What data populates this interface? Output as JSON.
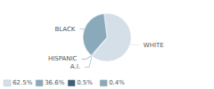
{
  "chart_data": {
    "type": "pie",
    "categories": [
      "WHITE",
      "A.I.",
      "HISPANIC",
      "BLACK"
    ],
    "values": [
      62.5,
      0.4,
      0.5,
      36.6
    ],
    "colors": [
      "#d4dfe8",
      "#8aaabb",
      "#6b8fa5",
      "#8aaabb"
    ],
    "legend": "lower left",
    "legend_items": [
      {
        "label": "62.5%",
        "color": "#d4dfe8"
      },
      {
        "label": "36.6%",
        "color": "#8aaabb"
      },
      {
        "label": "0.5%",
        "color": "#3d5f7a"
      },
      {
        "label": "0.4%",
        "color": "#8aaabb"
      }
    ]
  }
}
